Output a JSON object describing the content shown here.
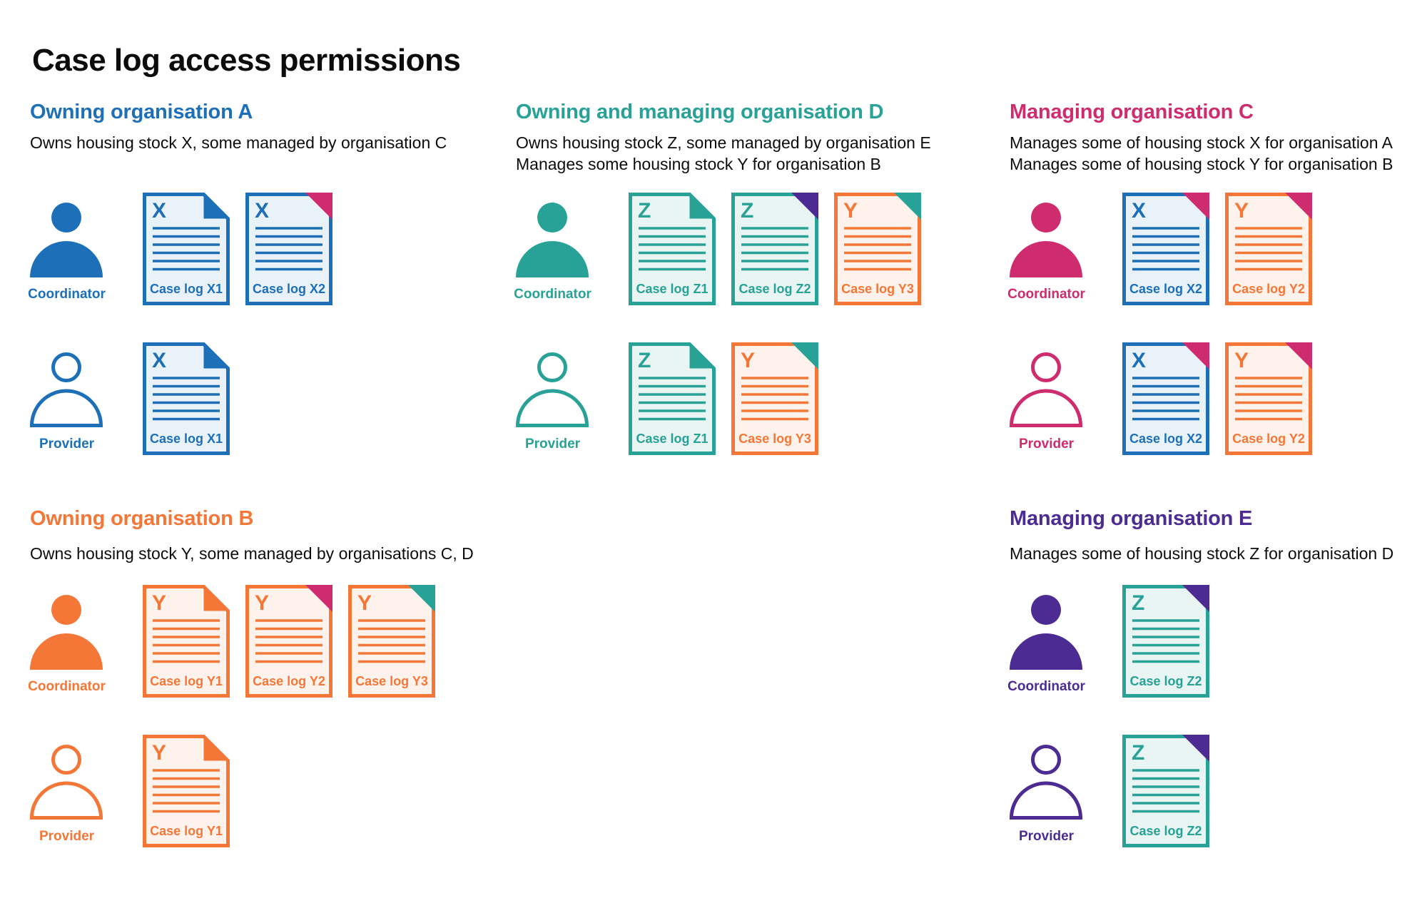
{
  "title": "Case log access permissions",
  "colors": {
    "blue": "#1d70b8",
    "teal": "#28a197",
    "orange": "#f47738",
    "pink": "#cf2b6f",
    "purple": "#4c2c92",
    "text": "#0b0c0c"
  },
  "fills": {
    "blue": "#eaf2f9",
    "teal": "#e9f5f3",
    "orange": "#fef3ec"
  },
  "sections": [
    {
      "id": "a",
      "heading": "Owning organisation A",
      "color": "blue",
      "description": [
        "Owns housing stock X, some managed by organisation C"
      ],
      "rows": [
        {
          "role": "Coordinator",
          "docs": [
            {
              "letter": "X",
              "label": "Case log X1",
              "doc_color": "blue",
              "fold_color": "blue"
            },
            {
              "letter": "X",
              "label": "Case log X2",
              "doc_color": "blue",
              "fold_color": "pink"
            }
          ]
        },
        {
          "role": "Provider",
          "docs": [
            {
              "letter": "X",
              "label": "Case log X1",
              "doc_color": "blue",
              "fold_color": "blue"
            }
          ]
        }
      ]
    },
    {
      "id": "d",
      "heading": "Owning and managing organisation D",
      "color": "teal",
      "description": [
        "Owns housing stock Z, some managed by organisation E",
        "Manages some housing stock Y for organisation B"
      ],
      "rows": [
        {
          "role": "Coordinator",
          "docs": [
            {
              "letter": "Z",
              "label": "Case log Z1",
              "doc_color": "teal",
              "fold_color": "teal"
            },
            {
              "letter": "Z",
              "label": "Case log Z2",
              "doc_color": "teal",
              "fold_color": "purple"
            },
            {
              "letter": "Y",
              "label": "Case log Y3",
              "doc_color": "orange",
              "fold_color": "teal"
            }
          ]
        },
        {
          "role": "Provider",
          "docs": [
            {
              "letter": "Z",
              "label": "Case log Z1",
              "doc_color": "teal",
              "fold_color": "teal"
            },
            {
              "letter": "Y",
              "label": "Case log Y3",
              "doc_color": "orange",
              "fold_color": "teal"
            }
          ]
        }
      ]
    },
    {
      "id": "c",
      "heading": "Managing organisation C",
      "color": "pink",
      "description": [
        "Manages some of housing stock X for organisation A",
        "Manages some of housing stock Y for organisation B"
      ],
      "rows": [
        {
          "role": "Coordinator",
          "docs": [
            {
              "letter": "X",
              "label": "Case log X2",
              "doc_color": "blue",
              "fold_color": "pink"
            },
            {
              "letter": "Y",
              "label": "Case log Y2",
              "doc_color": "orange",
              "fold_color": "pink"
            }
          ]
        },
        {
          "role": "Provider",
          "docs": [
            {
              "letter": "X",
              "label": "Case log X2",
              "doc_color": "blue",
              "fold_color": "pink"
            },
            {
              "letter": "Y",
              "label": "Case log Y2",
              "doc_color": "orange",
              "fold_color": "pink"
            }
          ]
        }
      ]
    },
    {
      "id": "b",
      "heading": "Owning organisation B",
      "color": "orange",
      "description": [
        "Owns housing stock Y, some managed by organisations C, D"
      ],
      "rows": [
        {
          "role": "Coordinator",
          "docs": [
            {
              "letter": "Y",
              "label": "Case log Y1",
              "doc_color": "orange",
              "fold_color": "orange"
            },
            {
              "letter": "Y",
              "label": "Case log Y2",
              "doc_color": "orange",
              "fold_color": "pink"
            },
            {
              "letter": "Y",
              "label": "Case log Y3",
              "doc_color": "orange",
              "fold_color": "teal"
            }
          ]
        },
        {
          "role": "Provider",
          "docs": [
            {
              "letter": "Y",
              "label": "Case log Y1",
              "doc_color": "orange",
              "fold_color": "orange"
            }
          ]
        }
      ]
    },
    {
      "id": "e",
      "heading": "Managing organisation E",
      "color": "purple",
      "description": [
        "Manages some of housing stock Z for organisation D"
      ],
      "rows": [
        {
          "role": "Coordinator",
          "docs": [
            {
              "letter": "Z",
              "label": "Case log Z2",
              "doc_color": "teal",
              "fold_color": "purple"
            }
          ]
        },
        {
          "role": "Provider",
          "docs": [
            {
              "letter": "Z",
              "label": "Case log Z2",
              "doc_color": "teal",
              "fold_color": "purple"
            }
          ]
        }
      ]
    }
  ]
}
